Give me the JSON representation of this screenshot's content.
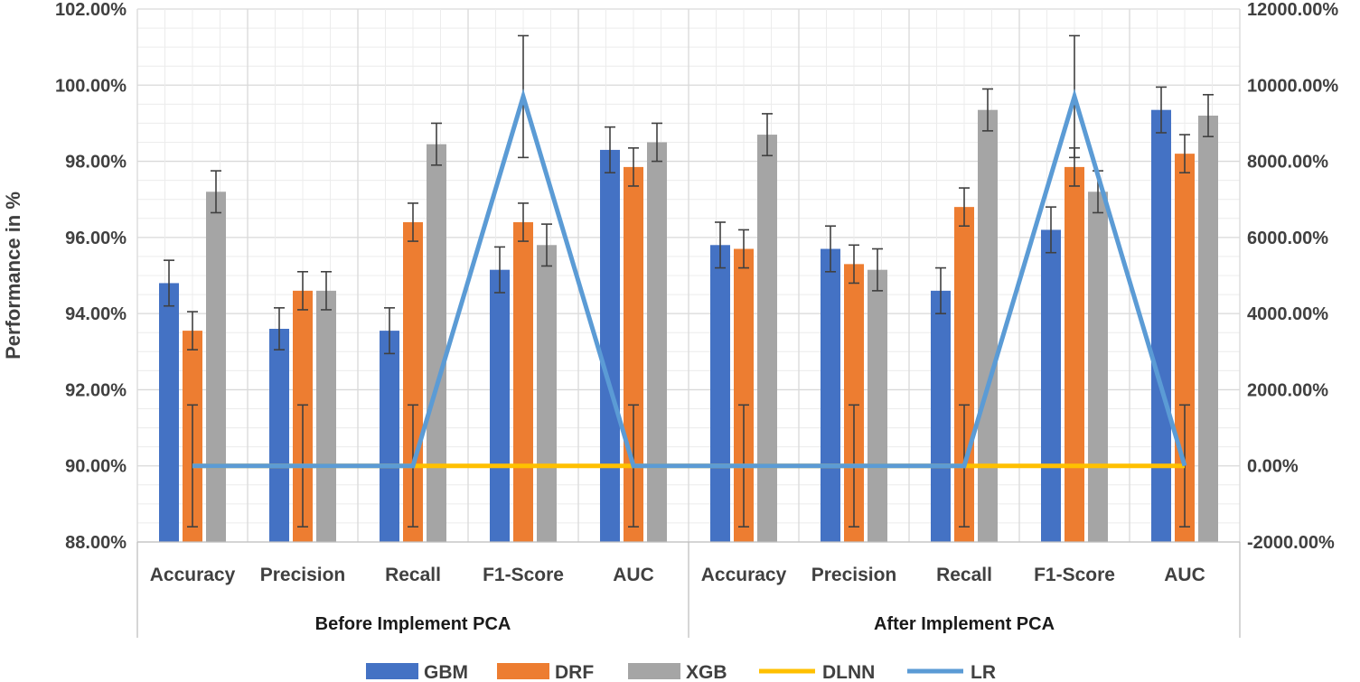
{
  "chart_data": {
    "type": "bar",
    "title": "",
    "ylabel": "Performance in %",
    "ylim": [
      88,
      102
    ],
    "y_ticks": [
      "102.00%",
      "100.00%",
      "98.00%",
      "96.00%",
      "94.00%",
      "92.00%",
      "90.00%",
      "88.00%"
    ],
    "y2lim": [
      -2000,
      12000
    ],
    "y2_ticks": [
      "12000.00%",
      "10000.00%",
      "8000.00%",
      "6000.00%",
      "4000.00%",
      "2000.00%",
      "0.00%",
      "-2000.00%"
    ],
    "groups": [
      "Before Implement PCA",
      "After Implement PCA"
    ],
    "categories": [
      "Accuracy",
      "Precision",
      "Recall",
      "F1-Score",
      "AUC",
      "Accuracy",
      "Precision",
      "Recall",
      "F1-Score",
      "AUC"
    ],
    "series": [
      {
        "name": "GBM",
        "type": "bar",
        "axis": "left",
        "color": "#4472C4",
        "values": [
          94.8,
          93.6,
          93.55,
          95.15,
          98.3,
          95.8,
          95.7,
          94.6,
          96.2,
          99.35
        ],
        "errors": [
          0.6,
          0.55,
          0.6,
          0.6,
          0.6,
          0.6,
          0.6,
          0.6,
          0.6,
          0.6
        ]
      },
      {
        "name": "DRF",
        "type": "bar",
        "axis": "left",
        "color": "#ED7D31",
        "values": [
          93.55,
          94.6,
          96.4,
          96.4,
          97.85,
          95.7,
          95.3,
          96.8,
          97.85,
          98.2
        ],
        "errors": [
          0.5,
          0.5,
          0.5,
          0.5,
          0.5,
          0.5,
          0.5,
          0.5,
          0.5,
          0.5
        ]
      },
      {
        "name": "XGB",
        "type": "bar",
        "axis": "left",
        "color": "#A5A5A5",
        "values": [
          97.2,
          94.6,
          98.45,
          95.8,
          98.5,
          98.7,
          95.15,
          99.35,
          97.2,
          99.2
        ],
        "errors": [
          0.55,
          0.5,
          0.55,
          0.55,
          0.5,
          0.55,
          0.55,
          0.55,
          0.55,
          0.55
        ]
      },
      {
        "name": "DLNN",
        "type": "line",
        "axis": "right",
        "color": "#FFC000",
        "values": [
          0,
          0,
          0,
          0,
          0,
          0,
          0,
          0,
          0,
          0
        ],
        "errors": [
          0,
          0,
          0,
          0,
          0,
          0,
          0,
          0,
          0,
          0
        ]
      },
      {
        "name": "LR",
        "type": "line",
        "axis": "right",
        "color": "#5B9BD5",
        "values": [
          0,
          0,
          0,
          9700,
          0,
          0,
          0,
          0,
          9700,
          0
        ],
        "errors": [
          1600,
          1600,
          1600,
          1600,
          1600,
          1600,
          1600,
          1600,
          1600,
          1600
        ]
      }
    ],
    "legend_position": "bottom",
    "grid": true
  }
}
